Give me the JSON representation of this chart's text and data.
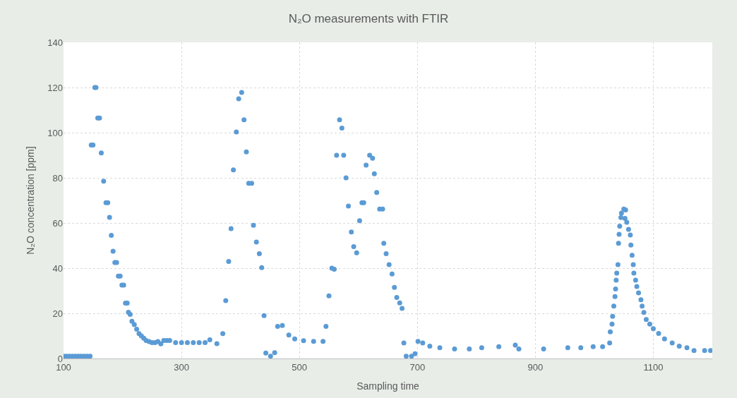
{
  "chart_data": {
    "type": "scatter",
    "title": "N₂O measurements with FTIR",
    "xlabel": "Sampling time",
    "ylabel": "N₂O concentration [ppm]",
    "x": [
      100,
      105,
      110,
      115,
      120,
      125,
      130,
      135,
      140,
      145,
      147,
      150,
      153,
      155,
      158,
      161,
      164,
      168,
      172,
      175,
      178,
      181,
      184,
      187,
      190,
      193,
      196,
      199,
      202,
      205,
      208,
      210,
      213,
      216,
      220,
      224,
      228,
      232,
      236,
      240,
      245,
      250,
      255,
      260,
      265,
      270,
      275,
      280,
      290,
      300,
      310,
      320,
      330,
      340,
      348,
      360,
      370,
      375,
      380,
      384,
      388,
      393,
      397,
      402,
      406,
      410,
      414,
      419,
      422,
      427,
      432,
      436,
      440,
      443,
      451,
      458,
      463,
      471,
      482,
      492,
      507,
      524,
      540,
      545,
      550,
      555,
      559,
      563,
      568,
      572,
      575,
      579,
      583,
      588,
      592,
      597,
      602,
      606,
      609,
      613,
      619,
      624,
      627,
      631,
      636,
      641,
      643,
      647,
      652,
      657,
      661,
      665,
      670,
      674,
      677,
      681,
      690,
      696,
      701,
      709,
      721,
      738,
      763,
      788,
      809,
      838,
      866,
      872,
      914,
      955,
      977,
      998,
      1014,
      1026,
      1027,
      1030,
      1031,
      1033,
      1035,
      1036,
      1037,
      1038,
      1040,
      1041,
      1042,
      1043,
      1045,
      1046,
      1050,
      1052,
      1053,
      1055,
      1058,
      1061,
      1062,
      1064,
      1066,
      1067,
      1070,
      1072,
      1075,
      1079,
      1081,
      1084,
      1088,
      1094,
      1100,
      1109,
      1119,
      1132,
      1144,
      1157,
      1169,
      1187,
      1197
    ],
    "values": [
      1,
      1,
      1,
      1,
      1,
      1,
      1,
      1,
      1,
      1,
      94.5,
      94.5,
      120,
      120,
      106.5,
      106.5,
      91,
      78.5,
      69,
      69,
      62.5,
      54.5,
      47.5,
      42.5,
      42.5,
      36.5,
      36.5,
      32.5,
      32.5,
      24.5,
      24.5,
      20.5,
      19.5,
      16.5,
      15,
      13,
      11,
      10,
      9,
      8,
      7.5,
      7,
      7,
      7.5,
      6.5,
      8,
      8,
      8,
      7,
      7,
      7,
      7,
      7,
      7,
      8.3,
      6.6,
      11,
      25.6,
      43,
      57.5,
      83.5,
      100.3,
      115,
      117.8,
      105.7,
      91.5,
      77.6,
      77.6,
      59,
      51.6,
      46.4,
      40.2,
      19,
      2.4,
      1,
      2.6,
      14.2,
      14.6,
      10.4,
      8.7,
      7.9,
      7.6,
      7.6,
      14.2,
      27.7,
      40,
      39.5,
      90,
      105.7,
      102,
      90,
      80,
      67.5,
      56,
      49.5,
      46.8,
      61,
      69,
      69,
      85.6,
      90,
      88.7,
      81.8,
      73.5,
      66.2,
      66.2,
      51,
      46.4,
      41.6,
      37.4,
      31.5,
      27,
      24.6,
      22.2,
      6.9,
      1,
      1,
      2.1,
      7.6,
      6.9,
      5.5,
      4.8,
      4.2,
      4.2,
      4.8,
      5.2,
      5.9,
      4.2,
      4.2,
      4.8,
      4.8,
      5.2,
      5.2,
      6.9,
      11.8,
      15.2,
      18.7,
      23.2,
      27.4,
      30.8,
      34.7,
      37.8,
      41.6,
      51,
      55,
      58.6,
      62.4,
      64.4,
      66.2,
      62,
      65.8,
      60.3,
      57.2,
      54.7,
      50.2,
      45.7,
      41.6,
      37.8,
      34.7,
      31.9,
      29.1,
      26,
      23.2,
      20.4,
      17.3,
      15.2,
      13.2,
      11.1,
      8.7,
      6.9,
      5.5,
      4.8,
      3.5,
      3.5,
      3.5
    ],
    "color": "#5b9bd5",
    "marker": "circle",
    "xlim": [
      100,
      1200
    ],
    "xticks": [
      100,
      300,
      500,
      700,
      900,
      1100
    ],
    "ylim": [
      0,
      140
    ],
    "yticks": [
      0,
      20,
      40,
      60,
      80,
      100,
      120,
      140
    ],
    "grid": true,
    "legend": false
  }
}
